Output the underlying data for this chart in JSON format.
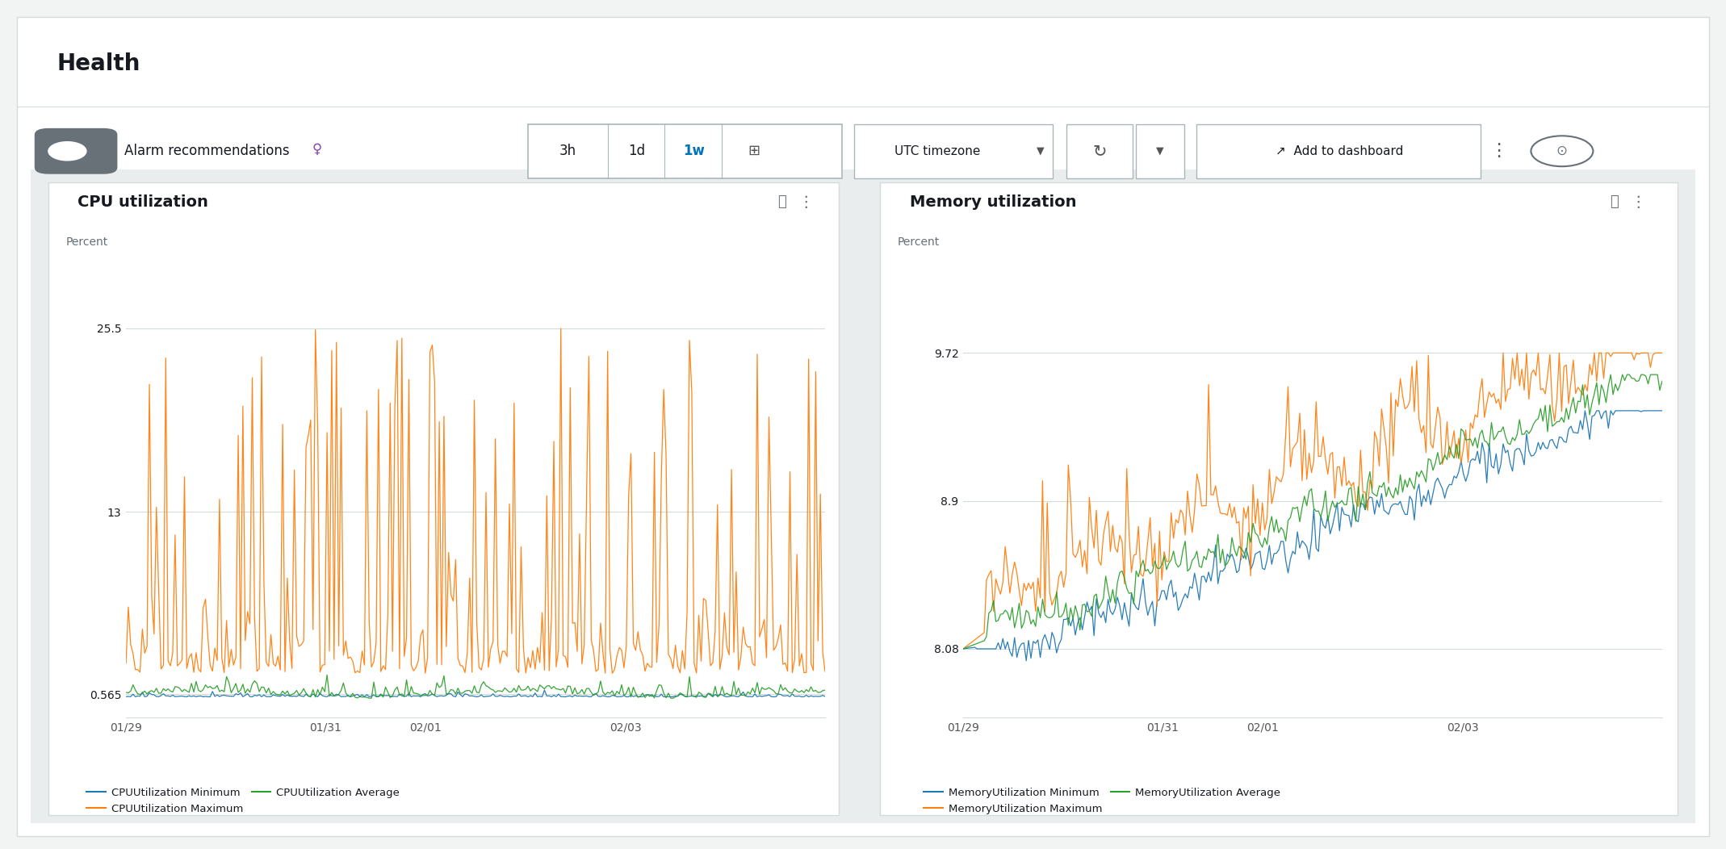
{
  "title": "Health",
  "bg_color": "#f2f3f3",
  "panel_bg": "#ffffff",
  "chart_area_bg": "#eaeded",
  "cpu_title": "CPU utilization",
  "cpu_ylabel": "Percent",
  "cpu_yticks": [
    0.565,
    13.0,
    25.5
  ],
  "cpu_ytick_labels": [
    "0.565",
    "13",
    "25.5"
  ],
  "cpu_ylim": [
    -1.0,
    28.5
  ],
  "cpu_xtick_labels": [
    "01/29",
    "01/31",
    "02/01",
    "02/03"
  ],
  "mem_title": "Memory utilization",
  "mem_ylabel": "Percent",
  "mem_yticks": [
    8.08,
    8.9,
    9.72
  ],
  "mem_ytick_labels": [
    "8.08",
    "8.9",
    "9.72"
  ],
  "mem_ylim": [
    7.7,
    10.1
  ],
  "mem_xtick_labels": [
    "01/29",
    "01/31",
    "02/01",
    "02/03"
  ],
  "color_min": "#1f77b4",
  "color_max": "#ff7f0e",
  "color_avg": "#2ca02c",
  "cpu_legend": [
    {
      "label": "CPUUtilization Minimum",
      "color": "#1f77b4"
    },
    {
      "label": "CPUUtilization Maximum",
      "color": "#ff7f0e"
    },
    {
      "label": "CPUUtilization Average",
      "color": "#2ca02c"
    }
  ],
  "mem_legend": [
    {
      "label": "MemoryUtilization Minimum",
      "color": "#1f77b4"
    },
    {
      "label": "MemoryUtilization Maximum",
      "color": "#ff7f0e"
    },
    {
      "label": "MemoryUtilization Average",
      "color": "#2ca02c"
    }
  ],
  "alarm_text": "Alarm recommendations",
  "selected_tab": "1w"
}
